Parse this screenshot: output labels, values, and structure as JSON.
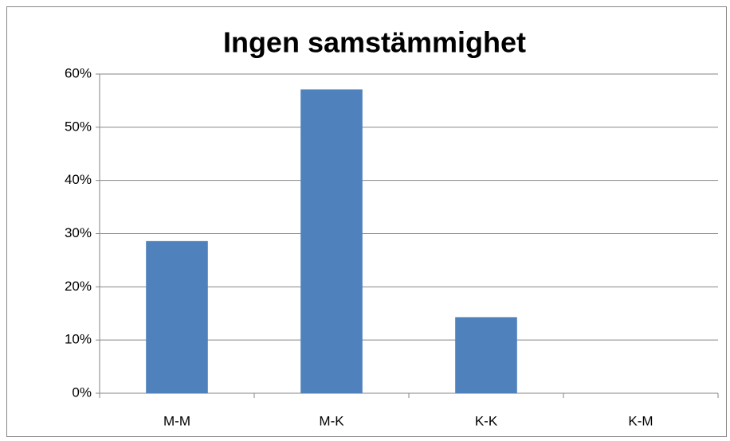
{
  "chart_data": {
    "type": "bar",
    "title": "Ingen samstämmighet",
    "categories": [
      "M-M",
      "M-K",
      "K-K",
      "K-M"
    ],
    "values": [
      28.6,
      57.1,
      14.3,
      0
    ],
    "color": "#4f81bd",
    "ylim": [
      0,
      60
    ],
    "yticks": [
      {
        "value": 0,
        "label": "0%"
      },
      {
        "value": 10,
        "label": "10%"
      },
      {
        "value": 20,
        "label": "20%"
      },
      {
        "value": 30,
        "label": "30%"
      },
      {
        "value": 40,
        "label": "40%"
      },
      {
        "value": 50,
        "label": "50%"
      },
      {
        "value": 60,
        "label": "60%"
      }
    ],
    "grid": true
  }
}
